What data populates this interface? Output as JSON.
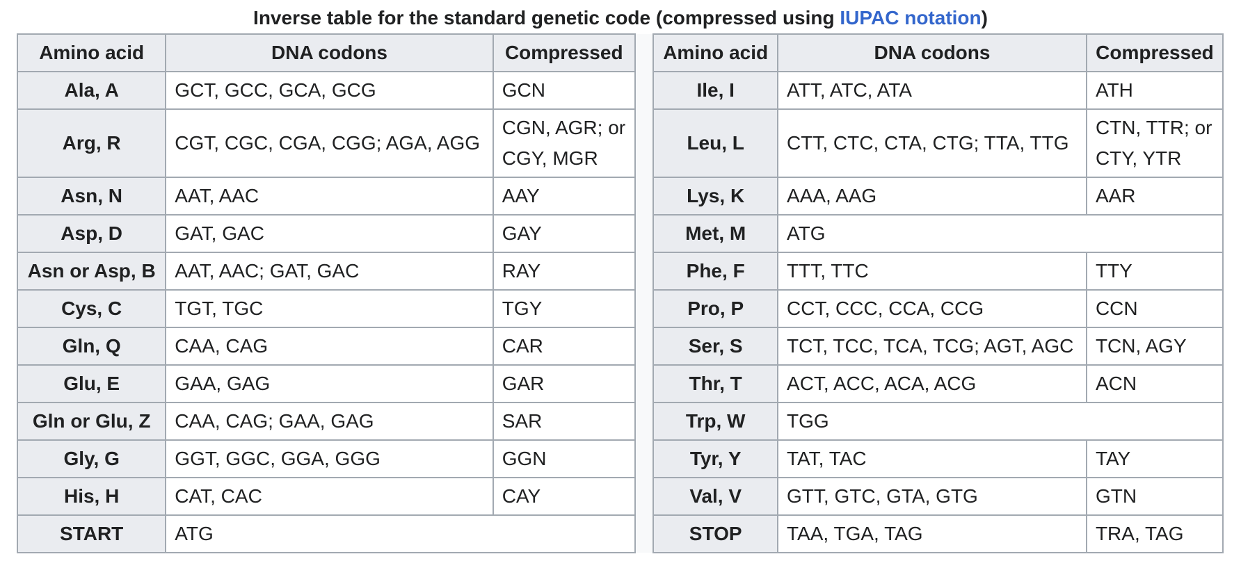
{
  "caption": {
    "before": "Inverse table for the standard genetic code (compressed using ",
    "link": "IUPAC notation",
    "after": ")"
  },
  "headers": {
    "amino_acid": "Amino acid",
    "dna_codons": "DNA codons",
    "compressed": "Compressed"
  },
  "left_rows": [
    {
      "aa": "Ala, A",
      "codons": "GCT, GCC, GCA, GCG",
      "compressed": "GCN"
    },
    {
      "aa": "Arg, R",
      "codons": "CGT, CGC, CGA, CGG; AGA, AGG",
      "compressed": "CGN, AGR; or CGY, MGR"
    },
    {
      "aa": "Asn, N",
      "codons": "AAT, AAC",
      "compressed": "AAY"
    },
    {
      "aa": "Asp, D",
      "codons": "GAT, GAC",
      "compressed": "GAY"
    },
    {
      "aa": "Asn or Asp, B",
      "codons": "AAT, AAC; GAT, GAC",
      "compressed": "RAY"
    },
    {
      "aa": "Cys, C",
      "codons": "TGT, TGC",
      "compressed": "TGY"
    },
    {
      "aa": "Gln, Q",
      "codons": "CAA, CAG",
      "compressed": "CAR"
    },
    {
      "aa": "Glu, E",
      "codons": "GAA, GAG",
      "compressed": "GAR"
    },
    {
      "aa": "Gln or Glu, Z",
      "codons": "CAA, CAG; GAA, GAG",
      "compressed": "SAR"
    },
    {
      "aa": "Gly, G",
      "codons": "GGT, GGC, GGA, GGG",
      "compressed": "GGN"
    },
    {
      "aa": "His, H",
      "codons": "CAT, CAC",
      "compressed": "CAY"
    },
    {
      "aa": "START",
      "codons": "ATG",
      "compressed": null
    }
  ],
  "right_rows": [
    {
      "aa": "Ile, I",
      "codons": "ATT, ATC, ATA",
      "compressed": "ATH"
    },
    {
      "aa": "Leu, L",
      "codons": "CTT, CTC, CTA, CTG; TTA, TTG",
      "compressed": "CTN, TTR; or CTY, YTR"
    },
    {
      "aa": "Lys, K",
      "codons": "AAA, AAG",
      "compressed": "AAR"
    },
    {
      "aa": "Met, M",
      "codons": "ATG",
      "compressed": null
    },
    {
      "aa": "Phe, F",
      "codons": "TTT, TTC",
      "compressed": "TTY"
    },
    {
      "aa": "Pro, P",
      "codons": "CCT, CCC, CCA, CCG",
      "compressed": "CCN"
    },
    {
      "aa": "Ser, S",
      "codons": "TCT, TCC, TCA, TCG; AGT, AGC",
      "compressed": "TCN, AGY"
    },
    {
      "aa": "Thr, T",
      "codons": "ACT, ACC, ACA, ACG",
      "compressed": "ACN"
    },
    {
      "aa": "Trp, W",
      "codons": "TGG",
      "compressed": null
    },
    {
      "aa": "Tyr, Y",
      "codons": "TAT, TAC",
      "compressed": "TAY"
    },
    {
      "aa": "Val, V",
      "codons": "GTT, GTC, GTA, GTG",
      "compressed": "GTN"
    },
    {
      "aa": "STOP",
      "codons": "TAA, TGA, TAG",
      "compressed": "TRA, TAG"
    }
  ],
  "colors": {
    "header_bg": "#eaecf0",
    "border": "#a2a9b1",
    "link": "#3366cc",
    "text": "#202122"
  }
}
